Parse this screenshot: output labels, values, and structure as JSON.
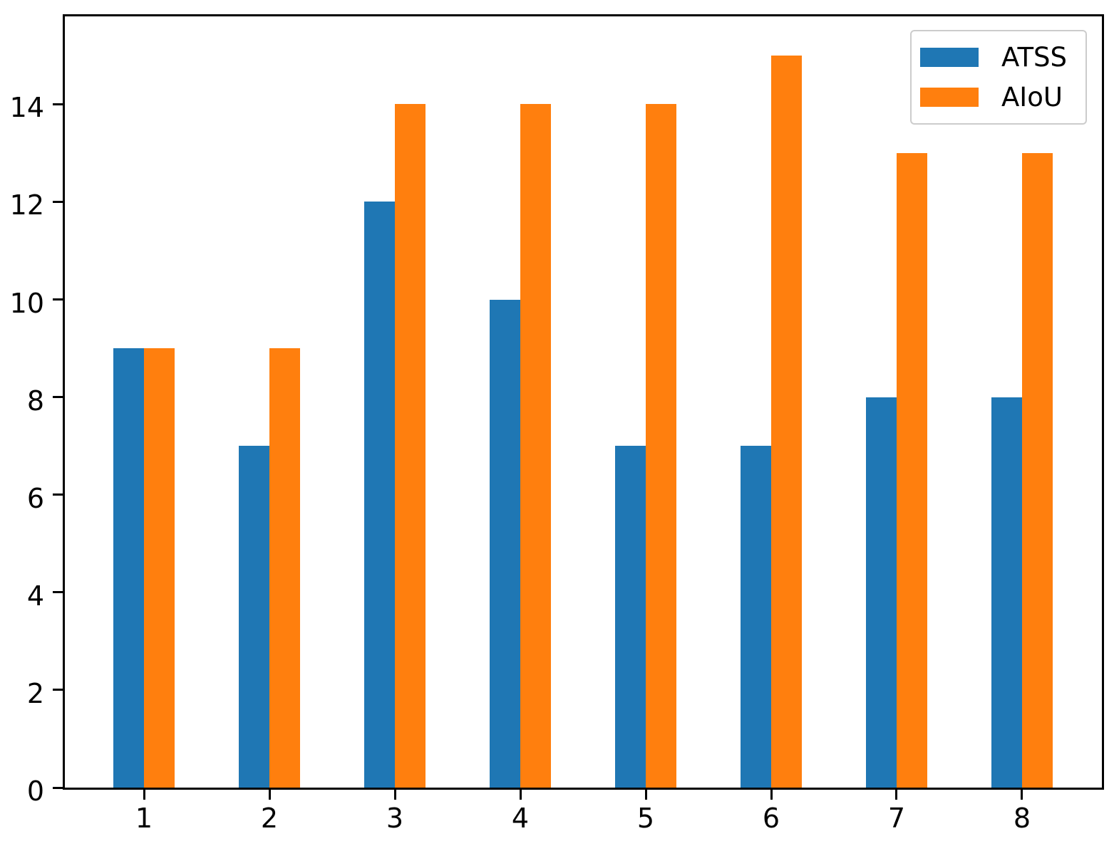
{
  "chart_data": {
    "type": "bar",
    "categories": [
      "1",
      "2",
      "3",
      "4",
      "5",
      "6",
      "7",
      "8"
    ],
    "series": [
      {
        "name": "ATSS",
        "color": "#1f77b4",
        "values": [
          9,
          7,
          12,
          10,
          7,
          7,
          8,
          8
        ]
      },
      {
        "name": "AIoU",
        "color": "#ff7f0e",
        "values": [
          9,
          9,
          14,
          14,
          14,
          15,
          13,
          13
        ]
      }
    ],
    "title": "",
    "xlabel": "",
    "ylabel": "",
    "ylim": [
      0,
      15.8
    ],
    "yticks": [
      0,
      2,
      4,
      6,
      8,
      10,
      12,
      14
    ],
    "grid": false,
    "legend_position": "upper-right",
    "axis_color": "#000000",
    "background_color": "#ffffff"
  }
}
